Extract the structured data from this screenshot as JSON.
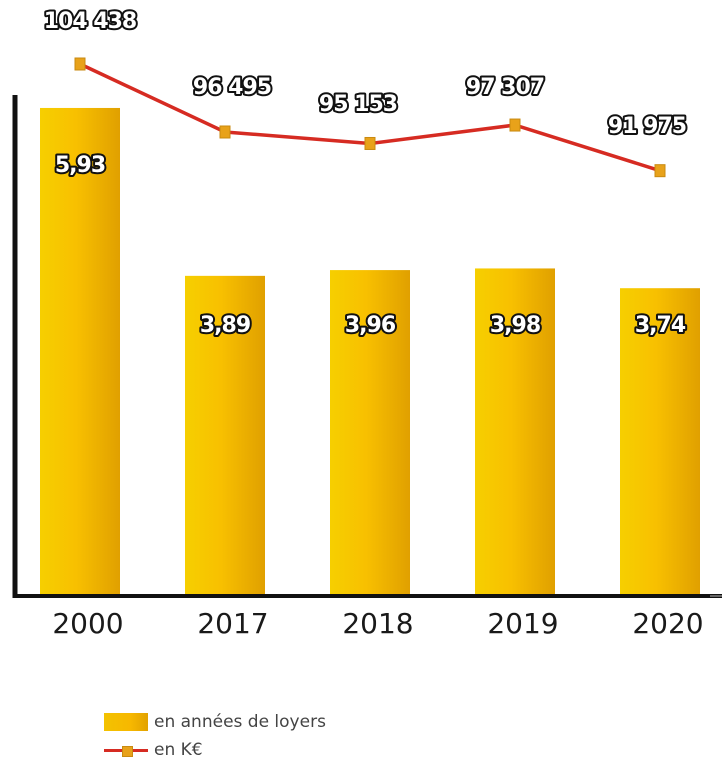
{
  "chart_data": {
    "type": "bar",
    "categories": [
      "2000",
      "2017",
      "2018",
      "2019",
      "2020"
    ],
    "series": [
      {
        "name": "en années de loyers",
        "type": "bar",
        "values": [
          5.93,
          3.89,
          3.96,
          3.98,
          3.74
        ],
        "labels": [
          "5,93",
          "3,89",
          "3,96",
          "3,98",
          "3,74"
        ]
      },
      {
        "name": "en K€",
        "type": "line",
        "values": [
          104438,
          96495,
          95153,
          97307,
          91975
        ],
        "labels": [
          "104 438",
          "96 495",
          "95 153",
          "97 307",
          "91 975"
        ]
      }
    ],
    "title": "",
    "xlabel": "",
    "ylabel": "",
    "bar_ylim": [
      0,
      6.5
    ],
    "line_ylim": [
      60000,
      110000
    ],
    "legend_position": "bottom-left",
    "grid": false,
    "colors": {
      "bar": "#f5b800",
      "line": "#d62b22",
      "marker": "#e8a21a",
      "axis": "#111111"
    }
  },
  "legend": {
    "bar_label": "en années de loyers",
    "line_label": "en K€"
  }
}
